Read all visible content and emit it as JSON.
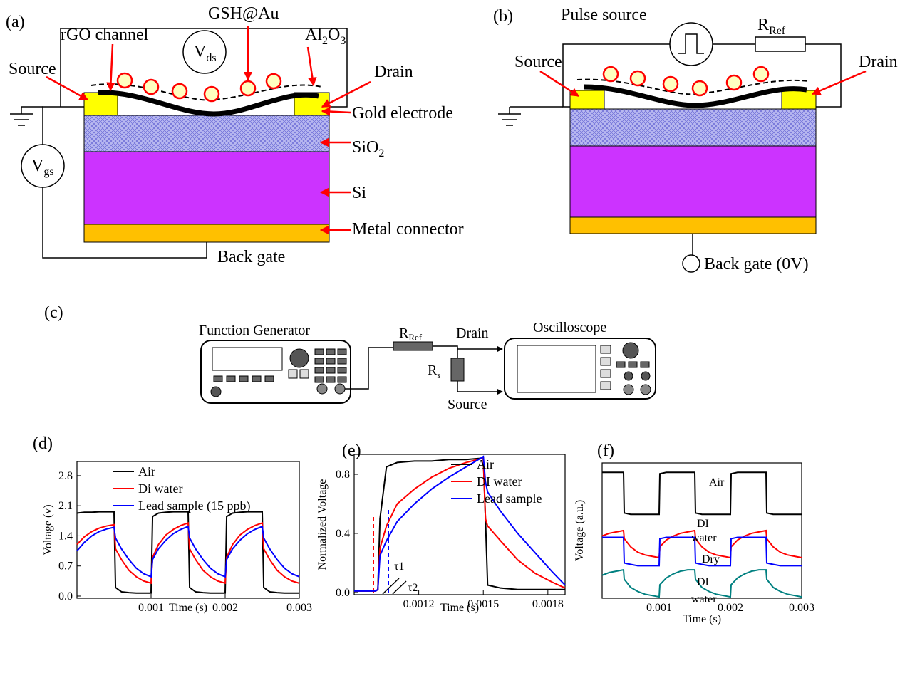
{
  "diagram_a": {
    "label": "(a)",
    "rgo": "rGO channel",
    "gsh": "GSH@Au",
    "al2o3": {
      "a": "Al",
      "s1": "2",
      "b": "O",
      "s2": "3"
    },
    "vds": {
      "main": "V",
      "sub": "ds"
    },
    "source": "Source",
    "drain": "Drain",
    "gold": "Gold electrode",
    "sio2": {
      "main": "SiO",
      "sub": "2"
    },
    "vgs": {
      "main": "V",
      "sub": "gs"
    },
    "si": "Si",
    "metal": "Metal connector",
    "back_gate": "Back gate"
  },
  "diagram_b": {
    "label": "(b)",
    "pulse": "Pulse source",
    "rref": {
      "main": "R",
      "sub": "Ref"
    },
    "source": "Source",
    "drain": "Drain",
    "back_gate": "Back gate (0V)"
  },
  "diagram_c": {
    "label": "(c)",
    "fg": "Function Generator",
    "rref": {
      "main": "R",
      "sub": "Ref"
    },
    "drain": "Drain",
    "osc": "Oscilloscope",
    "rs": {
      "main": "R",
      "sub": "s"
    },
    "source": "Source"
  },
  "chart_data": [
    {
      "type": "line",
      "panel_label": "(d)",
      "x_label": "Time (s)",
      "y_label": "Voltage (v)",
      "legend": "upper left",
      "x": [
        0,
        0.0001,
        0.0002,
        0.0003,
        0.0004,
        0.0005,
        0.00052,
        0.0006,
        0.0007,
        0.0008,
        0.0009,
        0.001,
        0.00102,
        0.0011,
        0.0012,
        0.0013,
        0.0014,
        0.0015,
        0.00152,
        0.0016,
        0.0017,
        0.0018,
        0.0019,
        0.002,
        0.00202,
        0.0021,
        0.0022,
        0.0023,
        0.0024,
        0.0025,
        0.00252,
        0.0026,
        0.0027,
        0.0028,
        0.0029,
        0.003
      ],
      "series": [
        {
          "name": "Air",
          "color": "#000000",
          "values": [
            1.93,
            1.95,
            1.95,
            1.96,
            1.96,
            1.96,
            0.2,
            0.1,
            0.08,
            0.07,
            0.07,
            0.07,
            1.85,
            1.93,
            1.95,
            1.96,
            1.96,
            1.96,
            0.2,
            0.1,
            0.08,
            0.07,
            0.07,
            0.07,
            1.85,
            1.93,
            1.95,
            1.96,
            1.96,
            1.96,
            0.2,
            0.1,
            0.08,
            0.07,
            0.07,
            0.07
          ]
        },
        {
          "name": "Di water",
          "color": "#ff0000",
          "values": [
            1.2,
            1.38,
            1.5,
            1.58,
            1.63,
            1.66,
            1.1,
            0.85,
            0.6,
            0.45,
            0.35,
            0.3,
            0.9,
            1.2,
            1.42,
            1.55,
            1.64,
            1.7,
            1.1,
            0.85,
            0.6,
            0.45,
            0.35,
            0.3,
            0.9,
            1.2,
            1.42,
            1.55,
            1.64,
            1.7,
            1.1,
            0.85,
            0.6,
            0.45,
            0.35,
            0.3
          ]
        },
        {
          "name": "Lead sample (15 ppb)",
          "color": "#0000ff",
          "values": [
            1.05,
            1.25,
            1.4,
            1.5,
            1.56,
            1.6,
            1.35,
            1.1,
            0.85,
            0.65,
            0.52,
            0.45,
            0.85,
            1.1,
            1.3,
            1.45,
            1.55,
            1.62,
            1.35,
            1.1,
            0.85,
            0.65,
            0.52,
            0.45,
            0.85,
            1.1,
            1.3,
            1.45,
            1.55,
            1.62,
            1.35,
            1.1,
            0.85,
            0.65,
            0.52,
            0.45
          ]
        }
      ],
      "xlim": [
        0,
        0.003
      ],
      "xticks": [
        0.001,
        0.002,
        0.003
      ],
      "ylim": [
        -0.05,
        3.13
      ],
      "yticks": [
        {
          "value": 0,
          "label": "0.0"
        },
        0.7,
        1.4,
        2.1,
        2.8
      ]
    },
    {
      "type": "line",
      "panel_label": "(e)",
      "x_label": "Time (s)",
      "y_label": "Normalized Voltage",
      "legend": "upper right",
      "x": [
        0.0009,
        0.00095,
        0.001,
        0.00101,
        0.00102,
        0.00105,
        0.0011,
        0.00118,
        0.00126,
        0.00134,
        0.00142,
        0.0015,
        0.00151,
        0.00152,
        0.00158,
        0.00166,
        0.00174,
        0.00182,
        0.00188
      ],
      "series": [
        {
          "name": "Air",
          "color": "#000000",
          "values": [
            0.01,
            0.01,
            0.01,
            0.02,
            0.5,
            0.85,
            0.88,
            0.89,
            0.89,
            0.9,
            0.9,
            0.91,
            0.5,
            0.05,
            0.03,
            0.02,
            0.02,
            0.02,
            0.02
          ]
        },
        {
          "name": "DI water",
          "color": "#ff0000",
          "values": [
            0.01,
            0.01,
            0.01,
            0.02,
            0.3,
            0.45,
            0.6,
            0.7,
            0.78,
            0.84,
            0.88,
            0.91,
            0.5,
            0.45,
            0.35,
            0.22,
            0.13,
            0.07,
            0.03
          ]
        },
        {
          "name": "Lead sample",
          "color": "#0000ff",
          "values": [
            0.01,
            0.01,
            0.01,
            0.02,
            0.25,
            0.35,
            0.48,
            0.6,
            0.7,
            0.78,
            0.85,
            0.92,
            0.75,
            0.68,
            0.55,
            0.4,
            0.27,
            0.14,
            0.05
          ]
        }
      ],
      "annotations": [
        "τ1",
        "τ2"
      ],
      "xlim": [
        0.0009,
        0.00188
      ],
      "xticks": [
        0.0012,
        0.0015,
        0.0018
      ],
      "ylim": [
        -0.015,
        0.935
      ],
      "yticks": [
        {
          "value": 0,
          "label": "0.0"
        },
        0.4,
        0.8
      ]
    },
    {
      "type": "line",
      "panel_label": "(f)",
      "x_label": "Time (s)",
      "y_label": "Voltage (a.u.)",
      "x": [
        0.0002,
        0.0003,
        0.0004,
        0.0005,
        0.00051,
        0.0006,
        0.0007,
        0.0008,
        0.0009,
        0.001,
        0.00101,
        0.0011,
        0.0012,
        0.0013,
        0.0014,
        0.0015,
        0.00151,
        0.0016,
        0.0017,
        0.0018,
        0.0019,
        0.002,
        0.00201,
        0.0021,
        0.0022,
        0.0023,
        0.0024,
        0.0025,
        0.00251,
        0.0026,
        0.0027,
        0.0028,
        0.0029,
        0.003
      ],
      "series": [
        {
          "color": "#000000",
          "values": [
            0.93,
            0.93,
            0.93,
            0.93,
            0.63,
            0.62,
            0.62,
            0.62,
            0.62,
            0.62,
            0.92,
            0.93,
            0.93,
            0.93,
            0.93,
            0.93,
            0.63,
            0.62,
            0.62,
            0.62,
            0.62,
            0.62,
            0.92,
            0.93,
            0.93,
            0.93,
            0.93,
            0.93,
            0.63,
            0.62,
            0.62,
            0.62,
            0.62,
            0.62
          ]
        },
        {
          "color": "#ff0000",
          "values": [
            0.46,
            0.48,
            0.49,
            0.5,
            0.44,
            0.38,
            0.34,
            0.32,
            0.31,
            0.3,
            0.38,
            0.43,
            0.46,
            0.48,
            0.49,
            0.5,
            0.44,
            0.38,
            0.34,
            0.32,
            0.31,
            0.3,
            0.38,
            0.43,
            0.46,
            0.48,
            0.49,
            0.5,
            0.44,
            0.38,
            0.34,
            0.32,
            0.31,
            0.3
          ]
        },
        {
          "color": "#0000ff",
          "values": [
            0.45,
            0.45,
            0.45,
            0.45,
            0.26,
            0.25,
            0.24,
            0.24,
            0.24,
            0.24,
            0.44,
            0.45,
            0.45,
            0.45,
            0.45,
            0.45,
            0.26,
            0.25,
            0.24,
            0.24,
            0.24,
            0.24,
            0.44,
            0.45,
            0.45,
            0.45,
            0.45,
            0.45,
            0.26,
            0.25,
            0.24,
            0.24,
            0.24,
            0.24
          ]
        },
        {
          "color": "#008080",
          "values": [
            0.17,
            0.19,
            0.2,
            0.21,
            0.14,
            0.08,
            0.05,
            0.03,
            0.02,
            0.01,
            0.1,
            0.15,
            0.18,
            0.2,
            0.21,
            0.21,
            0.14,
            0.08,
            0.05,
            0.03,
            0.02,
            0.01,
            0.1,
            0.15,
            0.18,
            0.2,
            0.21,
            0.21,
            0.14,
            0.08,
            0.05,
            0.03,
            0.02,
            0.01
          ]
        }
      ],
      "annotations": [
        "Air",
        "DI",
        "water",
        "Dry",
        "DI",
        "water"
      ],
      "xlim": [
        0.0002,
        0.003
      ],
      "xticks": [
        0.001,
        0.002,
        0.003
      ],
      "ylim": [
        0,
        1
      ]
    }
  ]
}
